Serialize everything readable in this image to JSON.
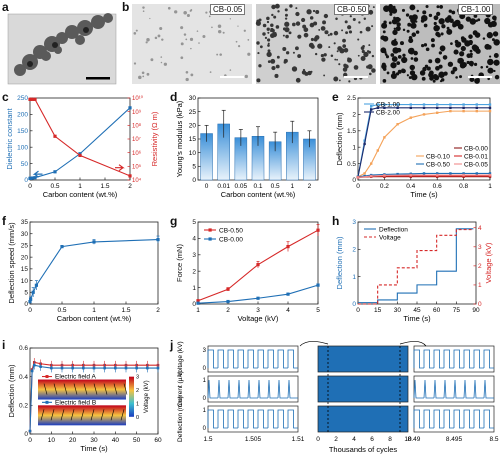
{
  "panels": {
    "a": {
      "label": "a"
    },
    "b": {
      "label": "b",
      "images": [
        {
          "tag": "CB-0.05"
        },
        {
          "tag": "CB-0.50"
        },
        {
          "tag": "CB-1.00"
        }
      ]
    },
    "c": {
      "label": "c"
    },
    "d": {
      "label": "d"
    },
    "e": {
      "label": "e"
    },
    "f": {
      "label": "f"
    },
    "g": {
      "label": "g"
    },
    "h": {
      "label": "h"
    },
    "i": {
      "label": "i"
    },
    "j": {
      "label": "j"
    }
  },
  "colors": {
    "blue": "#1f6fb5",
    "red": "#d62828",
    "orange": "#f4a259",
    "navy": "#1b2a6b",
    "darkred": "#8b1a1a",
    "sky": "#4da3e0"
  },
  "chart_data": [
    {
      "panel": "c",
      "type": "line",
      "xlabel": "Carbon content (wt.%)",
      "ylabel": "Dielectric constant",
      "y2label": "Resistivity (Ω m)",
      "xlim": [
        0,
        2
      ],
      "ylim": [
        0,
        250
      ],
      "y2lim_log": [
        4,
        10
      ],
      "xticks": [
        "0",
        "0.5",
        "1",
        "1.5",
        "2"
      ],
      "yticks": [
        "0",
        "50",
        "100",
        "150",
        "200",
        "250"
      ],
      "y2ticks": [
        "10⁴",
        "10⁵",
        "10⁶",
        "10⁷",
        "10⁸",
        "10⁹",
        "10¹⁰"
      ],
      "series": [
        {
          "axis": "left",
          "color": "#1f6fb5",
          "x": [
            0,
            0.01,
            0.05,
            0.1,
            0.5,
            1,
            2
          ],
          "y": [
            5,
            5,
            6,
            7,
            25,
            80,
            220
          ]
        },
        {
          "axis": "right",
          "color": "#d62828",
          "x": [
            0,
            0.01,
            0.05,
            0.1,
            0.5,
            1,
            2
          ],
          "y": [
            9.9,
            9.9,
            9.9,
            9.9,
            7.2,
            5.8,
            4.3
          ]
        }
      ]
    },
    {
      "panel": "d",
      "type": "bar",
      "xlabel": "Carbon content (wt.%)",
      "ylabel": "Young's modulus (kPa)",
      "ylim": [
        0,
        30
      ],
      "yticks": [
        "0",
        "5",
        "10",
        "15",
        "20",
        "25",
        "30"
      ],
      "categories": [
        "0",
        "0.01",
        "0.05",
        "0.1",
        "0.5",
        "1",
        "2"
      ],
      "values": [
        17,
        20.5,
        15.5,
        16,
        14,
        17.5,
        15
      ],
      "errors": [
        3,
        5,
        3,
        3.5,
        3.5,
        4,
        3
      ]
    },
    {
      "panel": "e",
      "type": "line",
      "xlabel": "Time (s)",
      "ylabel": "Deflection (mm)",
      "xlim": [
        0,
        1
      ],
      "ylim": [
        0,
        2.5
      ],
      "xticks": [
        "0",
        "0.2",
        "0.4",
        "0.6",
        "0.8",
        "1"
      ],
      "yticks": [
        "0",
        "0.5",
        "1",
        "1.5",
        "2",
        "2.5"
      ],
      "series": [
        {
          "name": "CB-1.00",
          "color": "#4da3e0",
          "x": [
            0,
            0.05,
            0.1,
            0.15,
            0.2,
            0.3,
            0.4,
            0.5,
            0.6,
            0.7,
            0.8,
            0.9,
            1
          ],
          "y": [
            0.1,
            1.2,
            2.25,
            2.3,
            2.3,
            2.3,
            2.3,
            2.3,
            2.3,
            2.3,
            2.3,
            2.3,
            2.3
          ]
        },
        {
          "name": "CB-2.00",
          "color": "#1b2a6b",
          "x": [
            0,
            0.05,
            0.1,
            0.15,
            0.2,
            0.3,
            0.4,
            0.5,
            0.6,
            0.7,
            0.8,
            0.9,
            1
          ],
          "y": [
            0.1,
            1.1,
            2.15,
            2.2,
            2.2,
            2.2,
            2.2,
            2.2,
            2.2,
            2.2,
            2.2,
            2.2,
            2.2
          ]
        },
        {
          "name": "CB-0.10",
          "color": "#f4a259",
          "x": [
            0,
            0.05,
            0.1,
            0.15,
            0.2,
            0.3,
            0.4,
            0.5,
            0.6,
            0.7,
            0.8,
            0.9,
            1
          ],
          "y": [
            0.1,
            0.2,
            0.5,
            0.9,
            1.3,
            1.7,
            1.9,
            2.0,
            2.05,
            2.1,
            2.1,
            2.1,
            2.1
          ]
        },
        {
          "name": "CB-0.50",
          "color": "#1f6fb5",
          "x": [
            0,
            0.05,
            0.1,
            0.2,
            0.3,
            0.4,
            0.5,
            0.6,
            0.7,
            0.8,
            0.9,
            1
          ],
          "y": [
            0.1,
            0.12,
            0.15,
            0.17,
            0.18,
            0.19,
            0.2,
            0.2,
            0.2,
            0.2,
            0.2,
            0.2
          ]
        },
        {
          "name": "CB-0.00",
          "color": "#8b1a1a",
          "x": [
            0,
            0.1,
            0.2,
            0.4,
            0.6,
            0.8,
            1
          ],
          "y": [
            0.08,
            0.1,
            0.1,
            0.1,
            0.1,
            0.1,
            0.1
          ]
        },
        {
          "name": "CB-0.01",
          "color": "#d62828",
          "x": [
            0,
            0.1,
            0.2,
            0.4,
            0.6,
            0.8,
            1
          ],
          "y": [
            0.08,
            0.11,
            0.12,
            0.12,
            0.12,
            0.12,
            0.12
          ]
        },
        {
          "name": "CB-0.05",
          "color": "#f08a8a",
          "x": [
            0,
            0.1,
            0.2,
            0.4,
            0.6,
            0.8,
            1
          ],
          "y": [
            0.08,
            0.12,
            0.14,
            0.15,
            0.15,
            0.15,
            0.15
          ]
        }
      ]
    },
    {
      "panel": "f",
      "type": "line",
      "xlabel": "Carbon content (wt.%)",
      "ylabel": "Deflection speed (mm/s)",
      "xlim": [
        0,
        2
      ],
      "ylim": [
        0,
        35
      ],
      "xticks": [
        "0",
        "0.5",
        "1",
        "1.5",
        "2"
      ],
      "yticks": [
        "0",
        "5",
        "10",
        "15",
        "20",
        "25",
        "30",
        "35"
      ],
      "series": [
        {
          "color": "#1f6fb5",
          "x": [
            0,
            0.01,
            0.05,
            0.1,
            0.5,
            1,
            2
          ],
          "y": [
            1,
            2,
            5,
            8,
            24.5,
            26.5,
            27.5
          ],
          "err": [
            0.5,
            1,
            2,
            2,
            0.5,
            1,
            1.5
          ]
        }
      ]
    },
    {
      "panel": "g",
      "type": "line",
      "xlabel": "Voltage (kV)",
      "ylabel": "Force (mN)",
      "xlim": [
        1,
        5
      ],
      "ylim": [
        0,
        5
      ],
      "xticks": [
        "1",
        "2",
        "3",
        "4",
        "5"
      ],
      "yticks": [
        "0",
        "1",
        "2",
        "3",
        "4",
        "5"
      ],
      "series": [
        {
          "name": "CB-0.50",
          "color": "#d62828",
          "x": [
            1,
            2,
            3,
            4,
            5
          ],
          "y": [
            0.2,
            0.9,
            2.4,
            3.5,
            4.5
          ],
          "err": [
            0.05,
            0.1,
            0.2,
            0.3,
            0.35
          ]
        },
        {
          "name": "CB-0.00",
          "color": "#1f6fb5",
          "x": [
            1,
            2,
            3,
            4,
            5
          ],
          "y": [
            0.05,
            0.15,
            0.35,
            0.6,
            1.15
          ],
          "err": [
            0.02,
            0.03,
            0.05,
            0.05,
            0.08
          ]
        }
      ]
    },
    {
      "panel": "h",
      "type": "line",
      "xlabel": "Time (s)",
      "ylabel": "Deflection (mm)",
      "y2label": "Voltage (kV)",
      "xlim": [
        0,
        90
      ],
      "ylim": [
        0,
        3
      ],
      "y2lim": [
        0,
        4.3
      ],
      "xticks": [
        "0",
        "15",
        "30",
        "45",
        "60",
        "75",
        "90"
      ],
      "yticks": [
        "0",
        "1",
        "2",
        "3"
      ],
      "y2ticks": [
        "0",
        "1",
        "2",
        "3",
        "4"
      ],
      "series": [
        {
          "name": "Deflection",
          "axis": "left",
          "color": "#1f6fb5",
          "x": [
            0,
            15,
            15,
            30,
            30,
            45,
            45,
            60,
            60,
            75,
            75,
            88
          ],
          "y": [
            0.05,
            0.05,
            0.15,
            0.15,
            0.4,
            0.4,
            0.7,
            0.7,
            1.2,
            1.2,
            2.75,
            2.75
          ]
        },
        {
          "name": "Voltage",
          "axis": "right",
          "color": "#d62828",
          "dash": true,
          "x": [
            0,
            15,
            15,
            30,
            30,
            45,
            45,
            60,
            60,
            75,
            75,
            88
          ],
          "y": [
            0,
            0,
            1,
            1,
            1.9,
            1.9,
            2.8,
            2.8,
            3.6,
            3.6,
            3.9,
            3.9
          ]
        }
      ]
    },
    {
      "panel": "i",
      "type": "line",
      "xlabel": "Time (s)",
      "ylabel": "Deflection (mm)",
      "xlim": [
        0,
        60
      ],
      "ylim": [
        0,
        0.6
      ],
      "xticks": [
        "0",
        "10",
        "20",
        "30",
        "40",
        "50",
        "60"
      ],
      "yticks": [
        "0",
        "0.2",
        "0.4",
        "0.6"
      ],
      "colorbar_label": "Voltage (kV)",
      "colorbar_ticks": [
        "0",
        "1",
        "2",
        "3"
      ],
      "series": [
        {
          "name": "Electric field A",
          "color": "#d62828",
          "x": [
            0,
            1,
            2,
            5,
            10,
            15,
            20,
            25,
            30,
            35,
            40,
            45,
            50,
            55,
            60
          ],
          "y": [
            0.02,
            0.45,
            0.5,
            0.49,
            0.48,
            0.48,
            0.48,
            0.48,
            0.48,
            0.48,
            0.48,
            0.48,
            0.48,
            0.48,
            0.48
          ]
        },
        {
          "name": "Electric field B",
          "color": "#1f6fb5",
          "x": [
            0,
            1,
            2,
            5,
            10,
            15,
            20,
            25,
            30,
            35,
            40,
            45,
            50,
            55,
            60
          ],
          "y": [
            0.02,
            0.44,
            0.48,
            0.47,
            0.46,
            0.46,
            0.46,
            0.46,
            0.46,
            0.46,
            0.46,
            0.46,
            0.46,
            0.46,
            0.46
          ]
        }
      ]
    },
    {
      "panel": "j",
      "type": "line",
      "xlabel": "Thousands of cycles",
      "row_labels": [
        "Voltage (kV)",
        "Current (μA)",
        "Deflection (mm)"
      ],
      "row_ticks": [
        [
          "0",
          "3"
        ],
        [
          "0",
          "1"
        ],
        [
          "0",
          "1"
        ]
      ],
      "column_ticks": [
        [
          "1.5",
          "1.505",
          "1.51"
        ],
        [
          "0",
          "2",
          "4",
          "6",
          "8",
          "10"
        ],
        [
          "8.49",
          "8.495",
          "8.5"
        ]
      ],
      "color": "#1f6fb5"
    }
  ]
}
